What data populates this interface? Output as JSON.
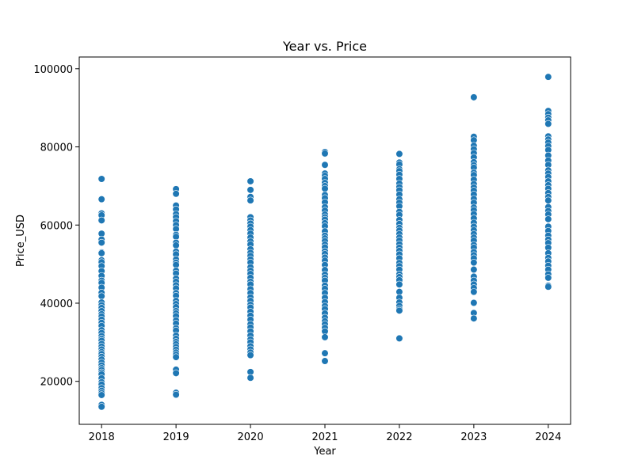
{
  "chart_data": {
    "type": "scatter",
    "title": "Year vs. Price",
    "xlabel": "Year",
    "ylabel": "Price_USD",
    "x_ticks": [
      2018,
      2019,
      2020,
      2021,
      2022,
      2023,
      2024
    ],
    "y_ticks": [
      20000,
      40000,
      60000,
      80000,
      100000
    ],
    "y_tick_labels": [
      "20000",
      "40000",
      "60000",
      "80000",
      "100000"
    ],
    "xlim": [
      2017.7,
      2024.3
    ],
    "ylim": [
      9000,
      103000
    ],
    "grid": false,
    "marker_color": "#1f77b4",
    "marker_edge_color": "#ffffff",
    "points": {
      "2018": [
        71800,
        66600,
        63000,
        62500,
        61200,
        57800,
        56300,
        55500,
        53000,
        52800,
        51000,
        50500,
        49500,
        48200,
        47000,
        45800,
        45200,
        44000,
        42700,
        41800,
        40200,
        39500,
        38800,
        38000,
        37200,
        36600,
        35800,
        35000,
        34200,
        33100,
        32400,
        31600,
        30900,
        30400,
        29600,
        28900,
        28200,
        27500,
        27000,
        26300,
        25600,
        24800,
        24100,
        23400,
        22900,
        22300,
        21800,
        20800,
        19800,
        19200,
        18300,
        17600,
        17000,
        16500,
        14000,
        13500
      ],
      "2019": [
        69200,
        68000,
        65000,
        64000,
        62800,
        62000,
        61000,
        60000,
        59000,
        57500,
        57000,
        55500,
        54800,
        53200,
        52500,
        51200,
        50400,
        49800,
        48300,
        47600,
        46300,
        45500,
        44600,
        43800,
        42600,
        41900,
        40600,
        39800,
        39000,
        38000,
        37400,
        36700,
        35600,
        34800,
        33600,
        33000,
        31700,
        30900,
        30100,
        29500,
        28800,
        28100,
        27400,
        26800,
        26200,
        23000,
        22100,
        17100,
        16600
      ],
      "2020": [
        71200,
        69000,
        67200,
        66300,
        62000,
        61200,
        60400,
        59600,
        58700,
        57800,
        56800,
        55800,
        55000,
        53800,
        52900,
        52100,
        51200,
        50400,
        49200,
        48300,
        47500,
        46500,
        45500,
        44800,
        43600,
        42600,
        41500,
        40600,
        39600,
        38900,
        37800,
        36800,
        35800,
        34600,
        33800,
        32800,
        31700,
        30700,
        30000,
        29000,
        28200,
        27400,
        26700,
        22400,
        20900
      ],
      "2021": [
        78700,
        78300,
        75400,
        73200,
        72600,
        71800,
        70800,
        70000,
        69300,
        67700,
        66900,
        65800,
        64600,
        63700,
        62700,
        62000,
        61400,
        60500,
        59700,
        58400,
        57300,
        56600,
        55900,
        55000,
        54300,
        53300,
        52600,
        51700,
        50900,
        49800,
        48500,
        47300,
        46500,
        45800,
        44500,
        43700,
        42600,
        41400,
        40300,
        39300,
        38500,
        37400,
        36300,
        35400,
        34600,
        33700,
        32800,
        31300,
        27200,
        25200
      ],
      "2022": [
        78200,
        76000,
        75500,
        74300,
        73800,
        72900,
        71800,
        70600,
        69700,
        68900,
        67800,
        66600,
        65700,
        64800,
        63400,
        62600,
        61300,
        60300,
        59300,
        58600,
        57700,
        56800,
        56000,
        55100,
        54200,
        53400,
        52500,
        51500,
        50300,
        49500,
        48600,
        47400,
        46700,
        45900,
        44800,
        42900,
        41400,
        40200,
        39300,
        38500,
        38100,
        31000
      ],
      "2023": [
        92700,
        82600,
        81700,
        80300,
        79400,
        78400,
        77300,
        76100,
        75300,
        74700,
        73400,
        72800,
        71600,
        70500,
        69600,
        68800,
        67800,
        66700,
        65700,
        64500,
        63800,
        62800,
        61700,
        60600,
        59600,
        58700,
        57700,
        56800,
        56000,
        54900,
        54200,
        53100,
        52300,
        51500,
        50400,
        48600,
        46800,
        45800,
        44800,
        43900,
        42900,
        40100,
        37500,
        36100
      ],
      "2024": [
        97900,
        89200,
        88400,
        87500,
        86800,
        85900,
        82700,
        81900,
        81100,
        80200,
        79200,
        77800,
        76500,
        75400,
        74000,
        73200,
        72300,
        71200,
        70200,
        69300,
        68200,
        67200,
        66300,
        64600,
        63600,
        62700,
        61500,
        59600,
        58500,
        57300,
        56300,
        55400,
        54200,
        52800,
        51600,
        50700,
        49600,
        48600,
        47400,
        46500,
        44500,
        44200
      ]
    }
  }
}
